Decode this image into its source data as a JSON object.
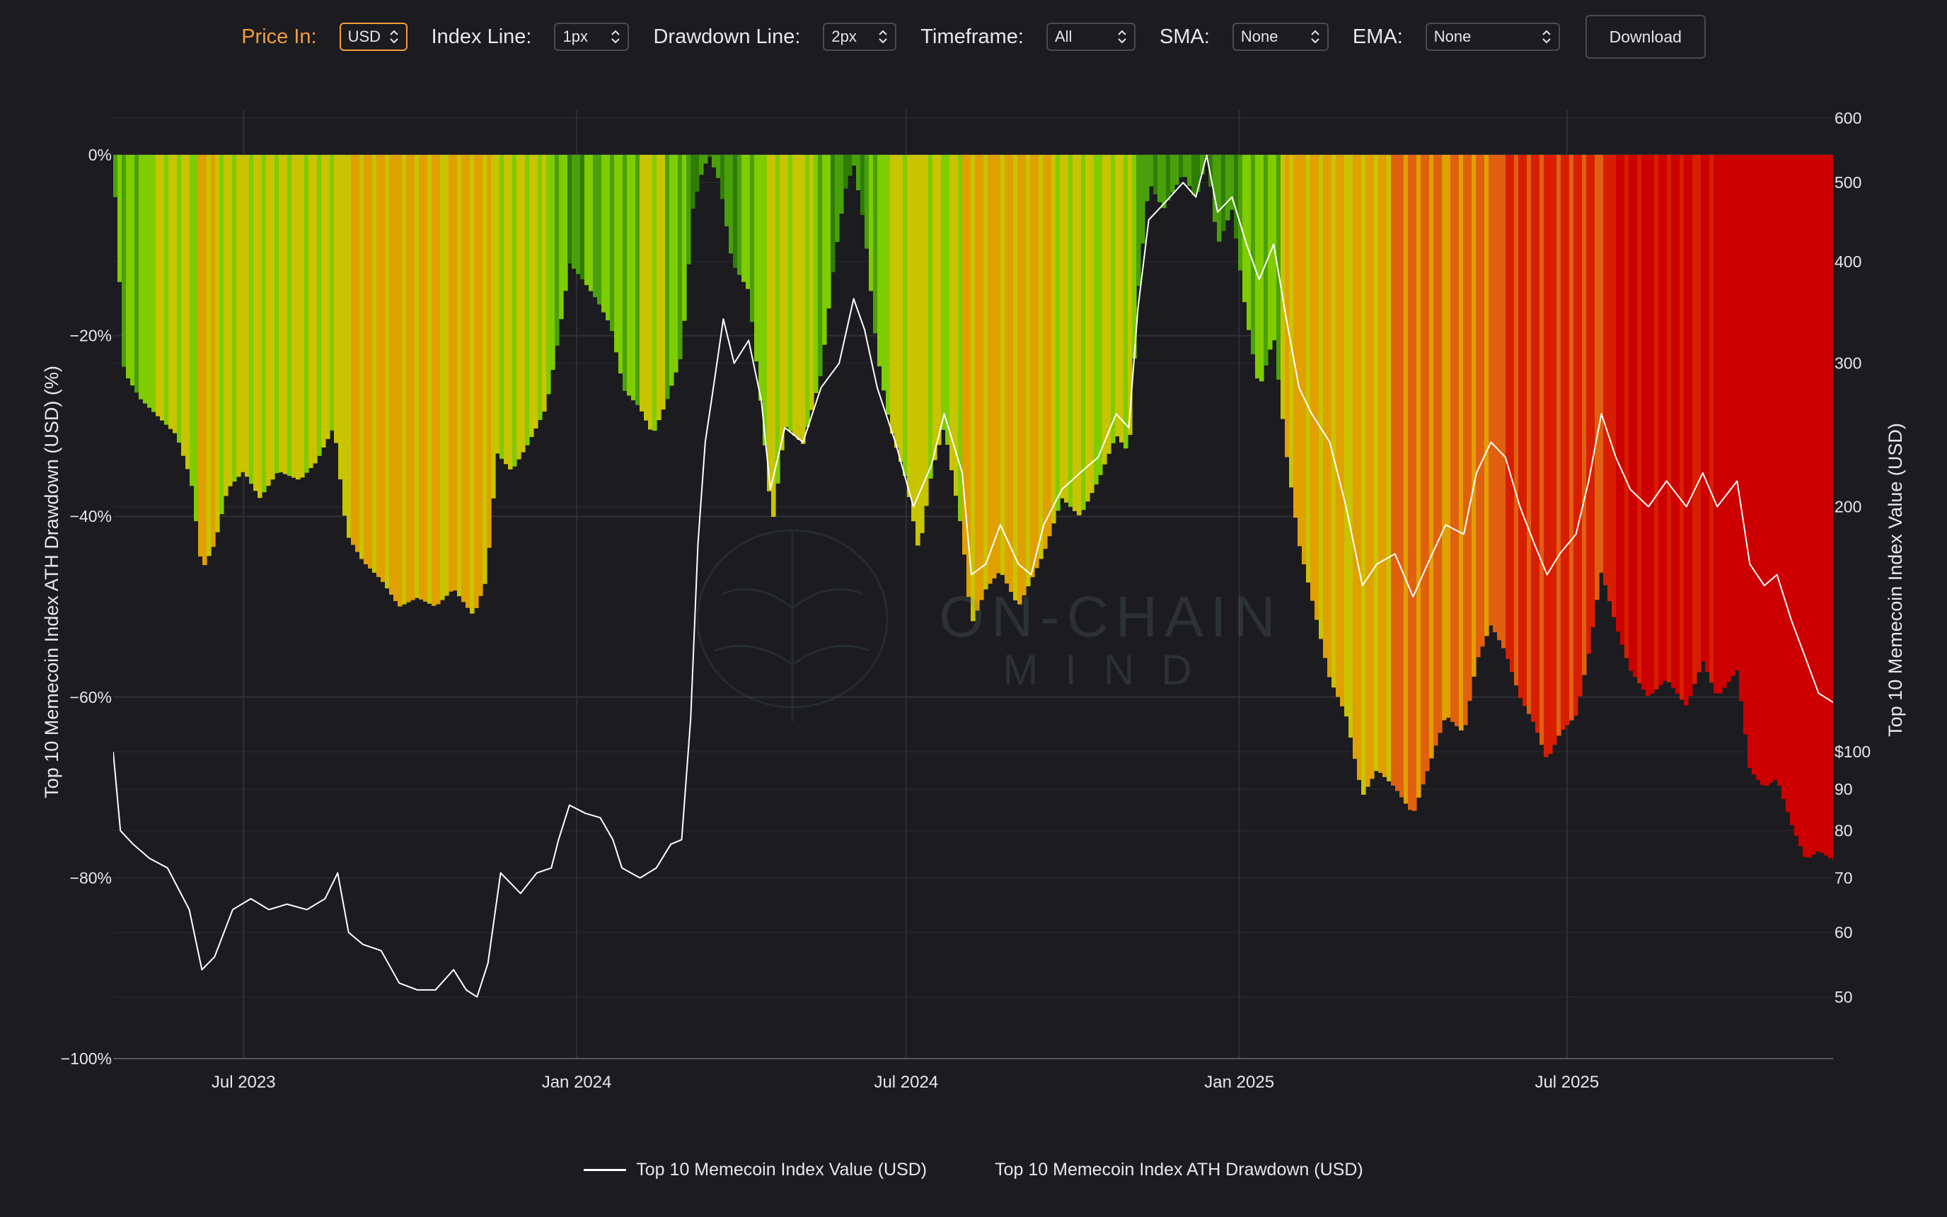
{
  "toolbar": {
    "price_in": {
      "label": "Price In:",
      "value": "USD"
    },
    "index_line": {
      "label": "Index Line:",
      "value": "1px"
    },
    "drawdown_line": {
      "label": "Drawdown Line:",
      "value": "2px"
    },
    "timeframe": {
      "label": "Timeframe:",
      "value": "All"
    },
    "sma": {
      "label": "SMA:",
      "value": "None"
    },
    "ema": {
      "label": "EMA:",
      "value": "None"
    },
    "download_label": "Download",
    "accent_color": "#f39c3a"
  },
  "watermark": {
    "line1": "ON-CHAIN",
    "line2": "MIND"
  },
  "chart_data": {
    "type": "area",
    "title": "",
    "x_start": "2023-04-20",
    "x_end": "2025-11-25",
    "x_ticks": [
      {
        "date": "2023-07-01",
        "label": "Jul 2023"
      },
      {
        "date": "2024-01-01",
        "label": "Jan 2024"
      },
      {
        "date": "2024-07-01",
        "label": "Jul 2024"
      },
      {
        "date": "2025-01-01",
        "label": "Jan 2025"
      },
      {
        "date": "2025-07-01",
        "label": "Jul 2025"
      }
    ],
    "left_axis": {
      "label": "Top 10 Memecoin Index ATH Drawdown (USD) (%)",
      "ylim": [
        -100,
        0
      ],
      "ticks": [
        0,
        -20,
        -40,
        -60,
        -80,
        -100
      ],
      "tick_labels": [
        "0%",
        "−20%",
        "−40%",
        "−60%",
        "−80%",
        "−100%"
      ]
    },
    "right_axis": {
      "label": "Top 10 Memecoin Index Value (USD)",
      "scale": "log",
      "ylim": [
        42,
        600
      ],
      "ticks": [
        600,
        500,
        400,
        300,
        200,
        100,
        90,
        80,
        70,
        60,
        50
      ],
      "tick_labels": [
        "600",
        "500",
        "400",
        "300",
        "200",
        "$100",
        "90",
        "80",
        "70",
        "60",
        "50"
      ]
    },
    "grid": true,
    "legend_position": "bottom-center",
    "drawdown_color_scale": [
      "#2f7d05",
      "#4aa00a",
      "#7fcc00",
      "#c8c400",
      "#e0a000",
      "#e06010",
      "#d81e00",
      "#cc0000"
    ],
    "series": [
      {
        "name": "Top 10 Memecoin Index Value (USD)",
        "color": "#ffffff",
        "points": [
          [
            "2023-04-20",
            100
          ],
          [
            "2023-04-24",
            80
          ],
          [
            "2023-05-01",
            77
          ],
          [
            "2023-05-10",
            74
          ],
          [
            "2023-05-20",
            72
          ],
          [
            "2023-06-01",
            64
          ],
          [
            "2023-06-08",
            54
          ],
          [
            "2023-06-15",
            56
          ],
          [
            "2023-06-25",
            64
          ],
          [
            "2023-07-05",
            66
          ],
          [
            "2023-07-15",
            64
          ],
          [
            "2023-07-25",
            65
          ],
          [
            "2023-08-05",
            64
          ],
          [
            "2023-08-15",
            66
          ],
          [
            "2023-08-22",
            71
          ],
          [
            "2023-08-28",
            60
          ],
          [
            "2023-09-05",
            58
          ],
          [
            "2023-09-15",
            57
          ],
          [
            "2023-09-25",
            52
          ],
          [
            "2023-10-05",
            51
          ],
          [
            "2023-10-15",
            51
          ],
          [
            "2023-10-25",
            54
          ],
          [
            "2023-11-01",
            51
          ],
          [
            "2023-11-07",
            50
          ],
          [
            "2023-11-13",
            55
          ],
          [
            "2023-11-20",
            71
          ],
          [
            "2023-12-01",
            67
          ],
          [
            "2023-12-10",
            71
          ],
          [
            "2023-12-18",
            72
          ],
          [
            "2023-12-22",
            78
          ],
          [
            "2023-12-28",
            86
          ],
          [
            "2024-01-06",
            84
          ],
          [
            "2024-01-14",
            83
          ],
          [
            "2024-01-21",
            78
          ],
          [
            "2024-01-26",
            72
          ],
          [
            "2024-02-05",
            70
          ],
          [
            "2024-02-14",
            72
          ],
          [
            "2024-02-22",
            77
          ],
          [
            "2024-02-28",
            78
          ],
          [
            "2024-03-04",
            110
          ],
          [
            "2024-03-08",
            180
          ],
          [
            "2024-03-12",
            240
          ],
          [
            "2024-03-16",
            275
          ],
          [
            "2024-03-22",
            340
          ],
          [
            "2024-03-28",
            300
          ],
          [
            "2024-04-05",
            320
          ],
          [
            "2024-04-12",
            270
          ],
          [
            "2024-04-17",
            210
          ],
          [
            "2024-04-25",
            250
          ],
          [
            "2024-05-05",
            240
          ],
          [
            "2024-05-15",
            280
          ],
          [
            "2024-05-25",
            300
          ],
          [
            "2024-06-02",
            360
          ],
          [
            "2024-06-08",
            330
          ],
          [
            "2024-06-15",
            280
          ],
          [
            "2024-06-25",
            240
          ],
          [
            "2024-07-05",
            200
          ],
          [
            "2024-07-15",
            225
          ],
          [
            "2024-07-22",
            260
          ],
          [
            "2024-08-01",
            220
          ],
          [
            "2024-08-06",
            165
          ],
          [
            "2024-08-14",
            170
          ],
          [
            "2024-08-22",
            190
          ],
          [
            "2024-09-01",
            170
          ],
          [
            "2024-09-08",
            165
          ],
          [
            "2024-09-15",
            190
          ],
          [
            "2024-09-25",
            210
          ],
          [
            "2024-10-05",
            220
          ],
          [
            "2024-10-15",
            230
          ],
          [
            "2024-10-25",
            260
          ],
          [
            "2024-11-01",
            250
          ],
          [
            "2024-11-06",
            350
          ],
          [
            "2024-11-12",
            450
          ],
          [
            "2024-11-20",
            470
          ],
          [
            "2024-12-01",
            500
          ],
          [
            "2024-12-08",
            480
          ],
          [
            "2024-12-14",
            540
          ],
          [
            "2024-12-20",
            460
          ],
          [
            "2024-12-28",
            480
          ],
          [
            "2025-01-05",
            420
          ],
          [
            "2025-01-12",
            380
          ],
          [
            "2025-01-20",
            420
          ],
          [
            "2025-01-27",
            340
          ],
          [
            "2025-02-03",
            280
          ],
          [
            "2025-02-10",
            260
          ],
          [
            "2025-02-20",
            240
          ],
          [
            "2025-03-01",
            200
          ],
          [
            "2025-03-10",
            160
          ],
          [
            "2025-03-18",
            170
          ],
          [
            "2025-03-28",
            175
          ],
          [
            "2025-04-07",
            155
          ],
          [
            "2025-04-15",
            170
          ],
          [
            "2025-04-25",
            190
          ],
          [
            "2025-05-05",
            185
          ],
          [
            "2025-05-12",
            220
          ],
          [
            "2025-05-20",
            240
          ],
          [
            "2025-05-28",
            230
          ],
          [
            "2025-06-05",
            200
          ],
          [
            "2025-06-13",
            180
          ],
          [
            "2025-06-20",
            165
          ],
          [
            "2025-06-27",
            175
          ],
          [
            "2025-07-06",
            185
          ],
          [
            "2025-07-13",
            215
          ],
          [
            "2025-07-20",
            260
          ],
          [
            "2025-07-28",
            230
          ],
          [
            "2025-08-05",
            210
          ],
          [
            "2025-08-15",
            200
          ],
          [
            "2025-08-25",
            215
          ],
          [
            "2025-09-05",
            200
          ],
          [
            "2025-09-14",
            220
          ],
          [
            "2025-09-22",
            200
          ],
          [
            "2025-10-03",
            215
          ],
          [
            "2025-10-10",
            170
          ],
          [
            "2025-10-18",
            160
          ],
          [
            "2025-10-25",
            165
          ],
          [
            "2025-11-02",
            145
          ],
          [
            "2025-11-10",
            130
          ],
          [
            "2025-11-17",
            118
          ],
          [
            "2025-11-25",
            115
          ]
        ]
      },
      {
        "name": "Top 10 Memecoin Index ATH Drawdown (USD)",
        "points": [
          [
            "2023-04-20",
            0
          ],
          [
            "2023-04-23",
            -12
          ],
          [
            "2023-04-26",
            -24
          ],
          [
            "2023-05-05",
            -27
          ],
          [
            "2023-05-15",
            -29
          ],
          [
            "2023-05-25",
            -31
          ],
          [
            "2023-06-02",
            -36
          ],
          [
            "2023-06-08",
            -46
          ],
          [
            "2023-06-15",
            -43
          ],
          [
            "2023-06-22",
            -37
          ],
          [
            "2023-07-01",
            -35
          ],
          [
            "2023-07-10",
            -38
          ],
          [
            "2023-07-20",
            -35
          ],
          [
            "2023-08-01",
            -36
          ],
          [
            "2023-08-10",
            -34
          ],
          [
            "2023-08-20",
            -30
          ],
          [
            "2023-08-27",
            -42
          ],
          [
            "2023-09-05",
            -45
          ],
          [
            "2023-09-15",
            -47
          ],
          [
            "2023-09-25",
            -50
          ],
          [
            "2023-10-05",
            -49
          ],
          [
            "2023-10-15",
            -50
          ],
          [
            "2023-10-25",
            -48
          ],
          [
            "2023-11-05",
            -51
          ],
          [
            "2023-11-12",
            -47
          ],
          [
            "2023-11-18",
            -33
          ],
          [
            "2023-11-26",
            -35
          ],
          [
            "2023-12-05",
            -32
          ],
          [
            "2023-12-15",
            -28
          ],
          [
            "2023-12-22",
            -20
          ],
          [
            "2023-12-28",
            -12
          ],
          [
            "2024-01-05",
            -14
          ],
          [
            "2024-01-12",
            -16
          ],
          [
            "2024-01-20",
            -19
          ],
          [
            "2024-01-27",
            -26
          ],
          [
            "2024-02-05",
            -28
          ],
          [
            "2024-02-12",
            -31
          ],
          [
            "2024-02-20",
            -27
          ],
          [
            "2024-02-28",
            -22
          ],
          [
            "2024-03-05",
            -6
          ],
          [
            "2024-03-10",
            -2
          ],
          [
            "2024-03-14",
            0
          ],
          [
            "2024-03-20",
            -3
          ],
          [
            "2024-03-27",
            -12
          ],
          [
            "2024-04-05",
            -15
          ],
          [
            "2024-04-12",
            -28
          ],
          [
            "2024-04-18",
            -41
          ],
          [
            "2024-04-25",
            -30
          ],
          [
            "2024-05-05",
            -32
          ],
          [
            "2024-05-15",
            -24
          ],
          [
            "2024-05-22",
            -12
          ],
          [
            "2024-05-28",
            -4
          ],
          [
            "2024-06-02",
            -1
          ],
          [
            "2024-06-08",
            -8
          ],
          [
            "2024-06-15",
            -22
          ],
          [
            "2024-06-22",
            -30
          ],
          [
            "2024-07-01",
            -36
          ],
          [
            "2024-07-08",
            -44
          ],
          [
            "2024-07-15",
            -35
          ],
          [
            "2024-07-22",
            -30
          ],
          [
            "2024-08-01",
            -42
          ],
          [
            "2024-08-06",
            -52
          ],
          [
            "2024-08-14",
            -48
          ],
          [
            "2024-08-22",
            -46
          ],
          [
            "2024-09-01",
            -50
          ],
          [
            "2024-09-08",
            -47
          ],
          [
            "2024-09-15",
            -44
          ],
          [
            "2024-09-25",
            -38
          ],
          [
            "2024-10-05",
            -40
          ],
          [
            "2024-10-15",
            -36
          ],
          [
            "2024-10-25",
            -31
          ],
          [
            "2024-11-01",
            -33
          ],
          [
            "2024-11-06",
            -15
          ],
          [
            "2024-11-12",
            -3
          ],
          [
            "2024-11-20",
            -6
          ],
          [
            "2024-12-01",
            -2
          ],
          [
            "2024-12-08",
            -5
          ],
          [
            "2024-12-14",
            0
          ],
          [
            "2024-12-20",
            -10
          ],
          [
            "2024-12-28",
            -6
          ],
          [
            "2025-01-05",
            -18
          ],
          [
            "2025-01-12",
            -26
          ],
          [
            "2025-01-20",
            -20
          ],
          [
            "2025-01-27",
            -33
          ],
          [
            "2025-02-03",
            -43
          ],
          [
            "2025-02-10",
            -49
          ],
          [
            "2025-02-20",
            -58
          ],
          [
            "2025-03-01",
            -62
          ],
          [
            "2025-03-10",
            -71
          ],
          [
            "2025-03-18",
            -68
          ],
          [
            "2025-03-28",
            -70
          ],
          [
            "2025-04-07",
            -73
          ],
          [
            "2025-04-15",
            -68
          ],
          [
            "2025-04-25",
            -62
          ],
          [
            "2025-05-05",
            -64
          ],
          [
            "2025-05-12",
            -56
          ],
          [
            "2025-05-20",
            -52
          ],
          [
            "2025-05-28",
            -55
          ],
          [
            "2025-06-05",
            -60
          ],
          [
            "2025-06-13",
            -63
          ],
          [
            "2025-06-20",
            -67
          ],
          [
            "2025-06-27",
            -64
          ],
          [
            "2025-07-06",
            -62
          ],
          [
            "2025-07-13",
            -55
          ],
          [
            "2025-07-20",
            -46
          ],
          [
            "2025-07-28",
            -52
          ],
          [
            "2025-08-05",
            -57
          ],
          [
            "2025-08-15",
            -60
          ],
          [
            "2025-08-25",
            -58
          ],
          [
            "2025-09-05",
            -61
          ],
          [
            "2025-09-14",
            -56
          ],
          [
            "2025-09-22",
            -60
          ],
          [
            "2025-10-03",
            -57
          ],
          [
            "2025-10-10",
            -68
          ],
          [
            "2025-10-18",
            -70
          ],
          [
            "2025-10-25",
            -69
          ],
          [
            "2025-11-02",
            -74
          ],
          [
            "2025-11-10",
            -78
          ],
          [
            "2025-11-17",
            -77
          ],
          [
            "2025-11-25",
            -78
          ]
        ]
      }
    ]
  }
}
